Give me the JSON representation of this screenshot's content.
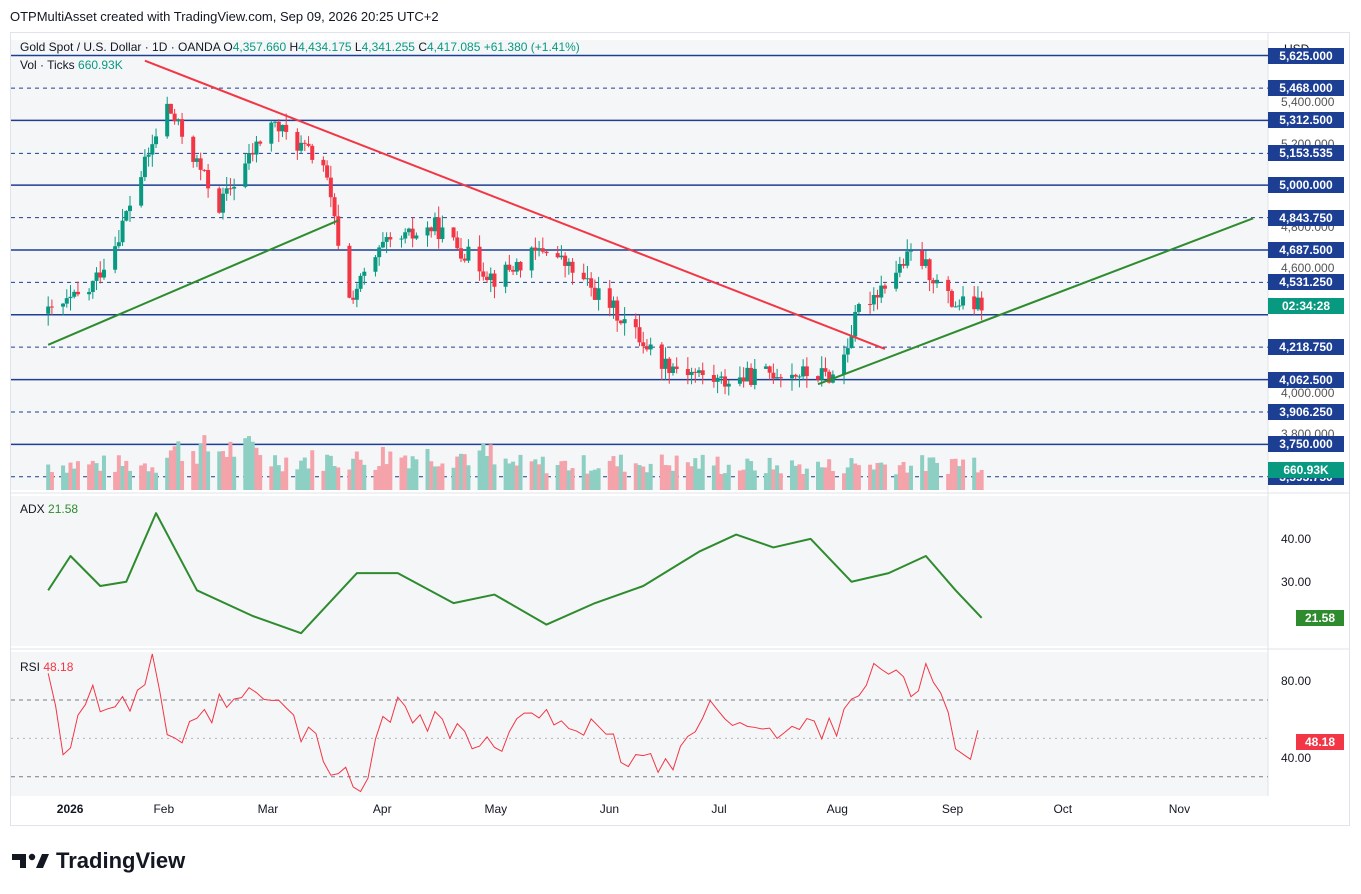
{
  "header": {
    "attribution": "OTPMultiAsset created with TradingView.com, Sep 09, 2026 20:25 UTC+2"
  },
  "legend": {
    "symbol": "Gold Spot / U.S. Dollar · 1D · OANDA",
    "open_label": "O",
    "open": "4,357.660",
    "high_label": "H",
    "high": "4,434.175",
    "low_label": "L",
    "low": "4,341.255",
    "close_label": "C",
    "close": "4,417.085",
    "change": "+61.380 (+1.41%)",
    "vol_label": "Vol · Ticks",
    "vol_value": "660.93K"
  },
  "currency": "USD",
  "indicators": {
    "adx_label": "ADX",
    "adx_value": "21.58",
    "rsi_label": "RSI",
    "rsi_value": "48.18"
  },
  "price_axis": {
    "ticks": [
      "5,400.000",
      "5,200.000",
      "4,800.000",
      "4,600.000",
      "4,000.000",
      "3,800.000"
    ],
    "level_tags": [
      "5,625.000",
      "5,468.000",
      "5,312.500",
      "5,153.535",
      "5,000.000",
      "4,843.750",
      "4,687.500",
      "4,531.250",
      "4,218.750",
      "4,062.500",
      "3,906.250",
      "3,750.000",
      "3,593.750"
    ],
    "countdown": "02:34:28",
    "volume_tag": "660.93K"
  },
  "adx_axis": {
    "ticks": [
      "40.00",
      "30.00"
    ],
    "tag": "21.58"
  },
  "rsi_axis": {
    "ticks": [
      "80.00",
      "40.00"
    ],
    "tag": "48.18"
  },
  "time_axis": [
    "2026",
    "Feb",
    "Mar",
    "Apr",
    "May",
    "Jun",
    "Jul",
    "Aug",
    "Sep",
    "Oct",
    "Nov"
  ],
  "footer": {
    "brand": "TradingView"
  },
  "colors": {
    "up": "#089981",
    "down": "#f23645",
    "level_line": "#1c3f94",
    "resistance_line": "#f23645",
    "support_line": "#2e8b2e",
    "adx_line": "#2e8b2e",
    "rsi_line": "#f23645"
  },
  "chart_data": [
    {
      "type": "candlestick",
      "title": "Gold Spot / U.S. Dollar · 1D · OANDA",
      "ylim": [
        3530,
        5700
      ],
      "x": [
        "2026-01-01",
        "2026-01-12",
        "2026-01-19",
        "2026-01-26",
        "2026-02-02",
        "2026-02-16",
        "2026-03-02",
        "2026-03-16",
        "2026-03-23",
        "2026-04-01",
        "2026-04-15",
        "2026-05-01",
        "2026-05-15",
        "2026-06-01",
        "2026-06-15",
        "2026-07-01",
        "2026-07-15",
        "2026-08-01",
        "2026-08-07",
        "2026-08-22",
        "2026-09-01",
        "2026-09-09"
      ],
      "close": [
        4380,
        4490,
        4720,
        5050,
        5380,
        4900,
        5300,
        5100,
        4450,
        4700,
        4800,
        4550,
        4700,
        4420,
        4150,
        4050,
        4100,
        4080,
        4400,
        4680,
        4430,
        4417
      ],
      "levels": [
        5625,
        5468,
        5312.5,
        5153.535,
        5000,
        4843.75,
        4687.5,
        4531.25,
        4375,
        4218.75,
        4062.5,
        3906.25,
        3750,
        3593.75
      ],
      "trendlines": [
        {
          "name": "resistance",
          "from": [
            "2026-01-27",
            5600
          ],
          "to": [
            "2026-08-14",
            4210
          ]
        },
        {
          "name": "support-1",
          "from": [
            "2026-01-01",
            4230
          ],
          "to": [
            "2026-03-20",
            4830
          ]
        },
        {
          "name": "support-2",
          "from": [
            "2026-07-27",
            4040
          ],
          "to": [
            "2026-11-21",
            4840
          ]
        }
      ]
    },
    {
      "type": "line",
      "title": "ADX",
      "ylim": [
        15,
        50
      ],
      "x": [
        "2026-01-01",
        "2026-01-07",
        "2026-01-15",
        "2026-01-22",
        "2026-01-30",
        "2026-02-10",
        "2026-02-25",
        "2026-03-10",
        "2026-03-25",
        "2026-04-05",
        "2026-04-20",
        "2026-05-01",
        "2026-05-15",
        "2026-05-28",
        "2026-06-10",
        "2026-06-25",
        "2026-07-05",
        "2026-07-15",
        "2026-07-25",
        "2026-08-05",
        "2026-08-15",
        "2026-08-25",
        "2026-09-02",
        "2026-09-09"
      ],
      "values": [
        28,
        36,
        29,
        30,
        46,
        28,
        22,
        18,
        32,
        32,
        25,
        27,
        20,
        25,
        29,
        37,
        41,
        38,
        40,
        30,
        32,
        36,
        28,
        21.58
      ]
    },
    {
      "type": "line",
      "title": "RSI",
      "ylim": [
        20,
        95
      ],
      "x": [
        "2026-01-01",
        "2026-01-05",
        "2026-01-12",
        "2026-01-20",
        "2026-01-30",
        "2026-02-03",
        "2026-02-15",
        "2026-03-01",
        "2026-03-10",
        "2026-03-20",
        "2026-03-25",
        "2026-04-05",
        "2026-04-20",
        "2026-05-01",
        "2026-05-15",
        "2026-06-01",
        "2026-06-15",
        "2026-07-01",
        "2026-07-15",
        "2026-08-01",
        "2026-08-10",
        "2026-08-20",
        "2026-08-28",
        "2026-09-03",
        "2026-09-09"
      ],
      "values": [
        90,
        45,
        75,
        60,
        92,
        40,
        65,
        72,
        55,
        30,
        25,
        70,
        55,
        42,
        68,
        45,
        35,
        68,
        50,
        60,
        86,
        76,
        83,
        38,
        48.18
      ]
    },
    {
      "type": "bar",
      "title": "Vol · Ticks",
      "ylim": [
        0,
        800
      ],
      "categories": [
        "2026-01",
        "2026-02",
        "2026-03",
        "2026-04",
        "2026-05",
        "2026-06",
        "2026-07",
        "2026-08",
        "2026-09"
      ],
      "values": [
        380,
        600,
        450,
        520,
        380,
        400,
        350,
        380,
        420
      ]
    }
  ]
}
